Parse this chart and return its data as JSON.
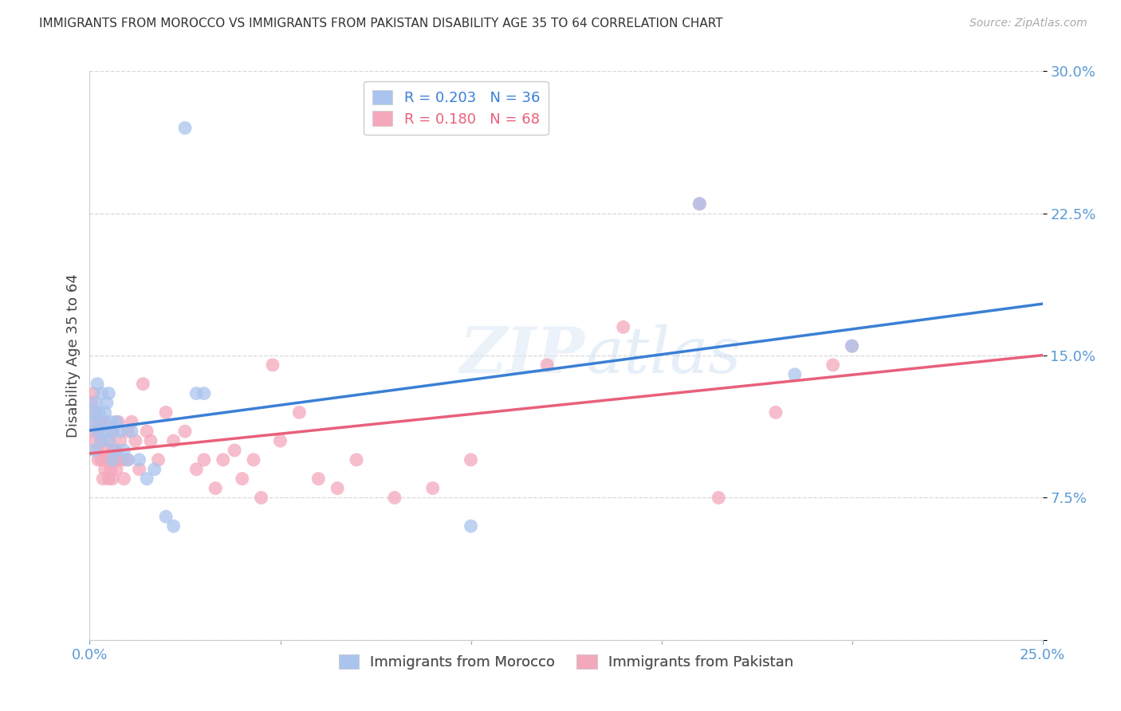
{
  "title": "IMMIGRANTS FROM MOROCCO VS IMMIGRANTS FROM PAKISTAN DISABILITY AGE 35 TO 64 CORRELATION CHART",
  "source": "Source: ZipAtlas.com",
  "ylabel": "Disability Age 35 to 64",
  "xlim": [
    0,
    0.25
  ],
  "ylim": [
    0,
    0.3
  ],
  "xticks": [
    0.0,
    0.05,
    0.1,
    0.15,
    0.2,
    0.25
  ],
  "yticks": [
    0.0,
    0.075,
    0.15,
    0.225,
    0.3
  ],
  "morocco_R": 0.203,
  "morocco_N": 36,
  "pakistan_R": 0.18,
  "pakistan_N": 68,
  "morocco_color": "#aac4ee",
  "pakistan_color": "#f4a8bc",
  "trendline_morocco_color": "#3a7fd5",
  "trendline_pakistan_color": "#e8607a",
  "background_color": "#ffffff",
  "grid_color": "#d8d8d8",
  "tick_color": "#5b9bd5",
  "legend_label_morocco": "Immigrants from Morocco",
  "legend_label_pakistan": "Immigrants from Pakistan",
  "morocco_x": [
    0.0008,
    0.001,
    0.0012,
    0.0015,
    0.002,
    0.002,
    0.0025,
    0.003,
    0.003,
    0.0032,
    0.004,
    0.004,
    0.0045,
    0.005,
    0.005,
    0.0055,
    0.006,
    0.006,
    0.007,
    0.007,
    0.008,
    0.009,
    0.01,
    0.011,
    0.013,
    0.015,
    0.017,
    0.02,
    0.022,
    0.025,
    0.028,
    0.03,
    0.1,
    0.16,
    0.185,
    0.2
  ],
  "morocco_y": [
    0.12,
    0.115,
    0.1,
    0.125,
    0.135,
    0.11,
    0.12,
    0.105,
    0.115,
    0.13,
    0.12,
    0.11,
    0.125,
    0.105,
    0.13,
    0.115,
    0.11,
    0.095,
    0.1,
    0.115,
    0.11,
    0.1,
    0.095,
    0.11,
    0.095,
    0.085,
    0.09,
    0.065,
    0.06,
    0.27,
    0.13,
    0.13,
    0.06,
    0.23,
    0.14,
    0.155
  ],
  "pakistan_x": [
    0.0005,
    0.001,
    0.001,
    0.0012,
    0.0015,
    0.002,
    0.002,
    0.0022,
    0.0025,
    0.003,
    0.003,
    0.003,
    0.0035,
    0.004,
    0.004,
    0.004,
    0.0045,
    0.005,
    0.005,
    0.005,
    0.0055,
    0.006,
    0.006,
    0.006,
    0.007,
    0.007,
    0.007,
    0.0075,
    0.008,
    0.008,
    0.009,
    0.009,
    0.01,
    0.01,
    0.011,
    0.012,
    0.013,
    0.014,
    0.015,
    0.016,
    0.018,
    0.02,
    0.022,
    0.025,
    0.028,
    0.03,
    0.033,
    0.035,
    0.038,
    0.04,
    0.043,
    0.045,
    0.048,
    0.05,
    0.055,
    0.06,
    0.065,
    0.07,
    0.08,
    0.09,
    0.1,
    0.12,
    0.14,
    0.16,
    0.165,
    0.18,
    0.195,
    0.2
  ],
  "pakistan_y": [
    0.125,
    0.13,
    0.11,
    0.105,
    0.12,
    0.115,
    0.1,
    0.095,
    0.11,
    0.115,
    0.095,
    0.105,
    0.085,
    0.1,
    0.09,
    0.115,
    0.095,
    0.105,
    0.085,
    0.095,
    0.09,
    0.1,
    0.085,
    0.11,
    0.09,
    0.1,
    0.095,
    0.115,
    0.095,
    0.105,
    0.085,
    0.095,
    0.11,
    0.095,
    0.115,
    0.105,
    0.09,
    0.135,
    0.11,
    0.105,
    0.095,
    0.12,
    0.105,
    0.11,
    0.09,
    0.095,
    0.08,
    0.095,
    0.1,
    0.085,
    0.095,
    0.075,
    0.145,
    0.105,
    0.12,
    0.085,
    0.08,
    0.095,
    0.075,
    0.08,
    0.095,
    0.145,
    0.165,
    0.23,
    0.075,
    0.12,
    0.145,
    0.155
  ]
}
